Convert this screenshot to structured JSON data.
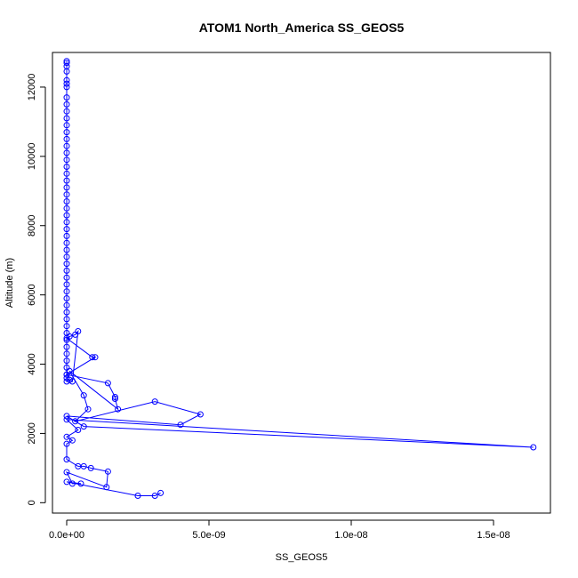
{
  "chart_data": {
    "type": "scatter",
    "title": "ATOM1 North_America SS_GEOS5",
    "xlabel": "SS_GEOS5",
    "ylabel": "Altitude (m)",
    "xlim": [
      -5e-10,
      1.7e-08
    ],
    "ylim": [
      -300,
      13000
    ],
    "x_ticks": [
      0,
      5e-09,
      1e-08,
      1.5e-08
    ],
    "x_tick_labels": [
      "0.0e+00",
      "5.0e-09",
      "1.0e-08",
      "1.5e-08"
    ],
    "y_ticks": [
      0,
      2000,
      4000,
      6000,
      8000,
      10000,
      12000
    ],
    "y_tick_labels": [
      "0",
      "2000",
      "4000",
      "6000",
      "8000",
      "10000",
      "12000"
    ],
    "grid": false,
    "style": "points joined by lines (type b)",
    "colors": {
      "series": "#0000ff",
      "axis": "#000000",
      "background": "#ffffff"
    },
    "series": [
      {
        "x": [
          0,
          0,
          0,
          0,
          0,
          0,
          0,
          0,
          0,
          0,
          0,
          0,
          0,
          0,
          0,
          0,
          0,
          0,
          0,
          0,
          0,
          0,
          0,
          0,
          0,
          0,
          0,
          0,
          0,
          0,
          0,
          0,
          0,
          0,
          0,
          0,
          0,
          0,
          0,
          0,
          0,
          0,
          0,
          0,
          0,
          0,
          0,
          0,
          0,
          0,
          1e-10,
          2e-10,
          4e-10,
          3e-10,
          1e-10,
          0,
          9e-10,
          1e-09,
          0,
          1.45e-09,
          1.7e-09,
          1.7e-09,
          1.8e-09,
          1e-10,
          6e-10,
          7.5e-10,
          3e-10,
          3.1e-09,
          4.7e-09,
          4e-09,
          0,
          6e-10,
          1.64e-08,
          0,
          4e-10,
          0,
          2e-10,
          0,
          0,
          4e-10,
          6e-10,
          8.5e-10,
          1.45e-09,
          1.4e-09,
          0,
          2e-10,
          5e-10,
          0,
          2.5e-09,
          3.1e-09,
          3.3e-09
        ],
        "y": [
          12750,
          12700,
          12600,
          12450,
          12200,
          12100,
          12000,
          11700,
          11500,
          11300,
          11100,
          10900,
          10700,
          10500,
          10300,
          10100,
          9900,
          9700,
          9500,
          9300,
          9100,
          8900,
          8700,
          8500,
          8300,
          8100,
          7900,
          7700,
          7500,
          7300,
          7100,
          6900,
          6700,
          6500,
          6300,
          6100,
          5900,
          5700,
          5500,
          5300,
          5100,
          4900,
          4700,
          4500,
          4300,
          4100,
          3900,
          3700,
          3600,
          3500,
          3550,
          3500,
          4950,
          4850,
          4800,
          4750,
          4200,
          4200,
          3700,
          3450,
          3050,
          3000,
          2700,
          3800,
          3100,
          2700,
          2350,
          2920,
          2550,
          2250,
          2500,
          2200,
          1600,
          2400,
          2100,
          1900,
          1800,
          1700,
          1250,
          1050,
          1050,
          1000,
          900,
          450,
          880,
          550,
          550,
          600,
          200,
          200,
          280
        ]
      }
    ]
  }
}
